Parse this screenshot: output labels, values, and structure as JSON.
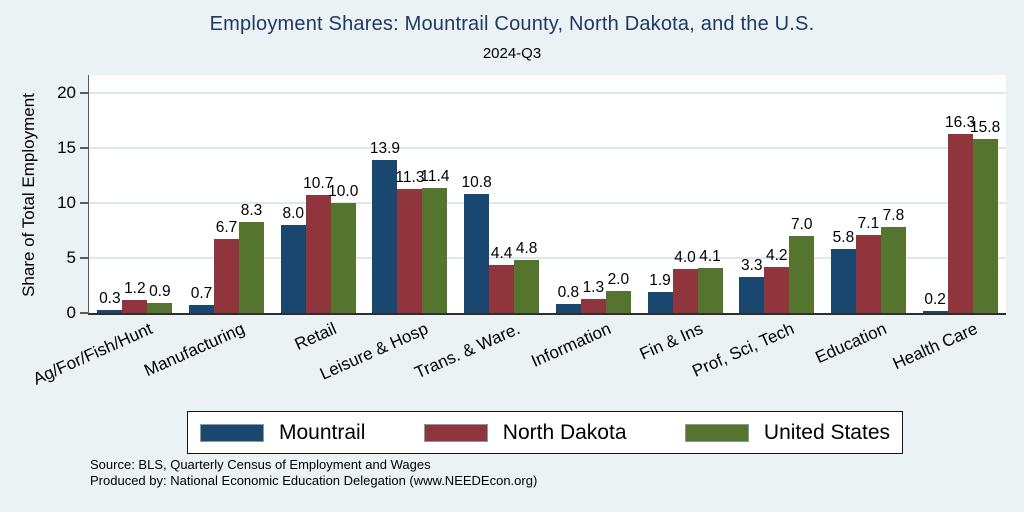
{
  "title": "Employment Shares: Mountrail County, North Dakota, and the U.S.",
  "subtitle": "2024-Q3",
  "source": {
    "line1": "Source: BLS, Quarterly Census of Employment and Wages",
    "line2": "Produced by: National Economic Education Delegation (www.NEEDEcon.org)"
  },
  "colors": {
    "background": "#eaf2f3",
    "plot_background": "#ffffff",
    "title_text": "#1f3864",
    "gridline": "#dce8ec",
    "axis_line": "#2e2e2e"
  },
  "chart_data": {
    "type": "bar",
    "title": "Employment Shares: Mountrail County, North Dakota, and the U.S.",
    "subtitle": "2024-Q3",
    "xlabel": "",
    "ylabel": "Share of Total Employment",
    "ylim": [
      0,
      20
    ],
    "yticks": [
      0,
      5,
      10,
      15,
      20
    ],
    "grid": true,
    "legend_position": "bottom",
    "bar_value_labels": true,
    "categories": [
      "Ag/For/Fish/Hunt",
      "Manufacturing",
      "Retail",
      "Leisure & Hosp",
      "Trans. & Ware.",
      "Information",
      "Fin & Ins",
      "Prof, Sci, Tech",
      "Education",
      "Health Care"
    ],
    "series": [
      {
        "name": "Mountrail",
        "color": "#1a476f",
        "values": [
          0.3,
          0.7,
          8.0,
          13.9,
          10.8,
          0.8,
          1.9,
          3.3,
          5.8,
          0.2
        ]
      },
      {
        "name": "North Dakota",
        "color": "#90353b",
        "values": [
          1.2,
          6.7,
          10.7,
          11.3,
          4.4,
          1.3,
          4.0,
          4.2,
          7.1,
          16.3
        ]
      },
      {
        "name": "United States",
        "color": "#55752f",
        "values": [
          0.9,
          8.3,
          10.0,
          11.4,
          4.8,
          2.0,
          4.1,
          7.0,
          7.8,
          15.8
        ]
      }
    ]
  }
}
